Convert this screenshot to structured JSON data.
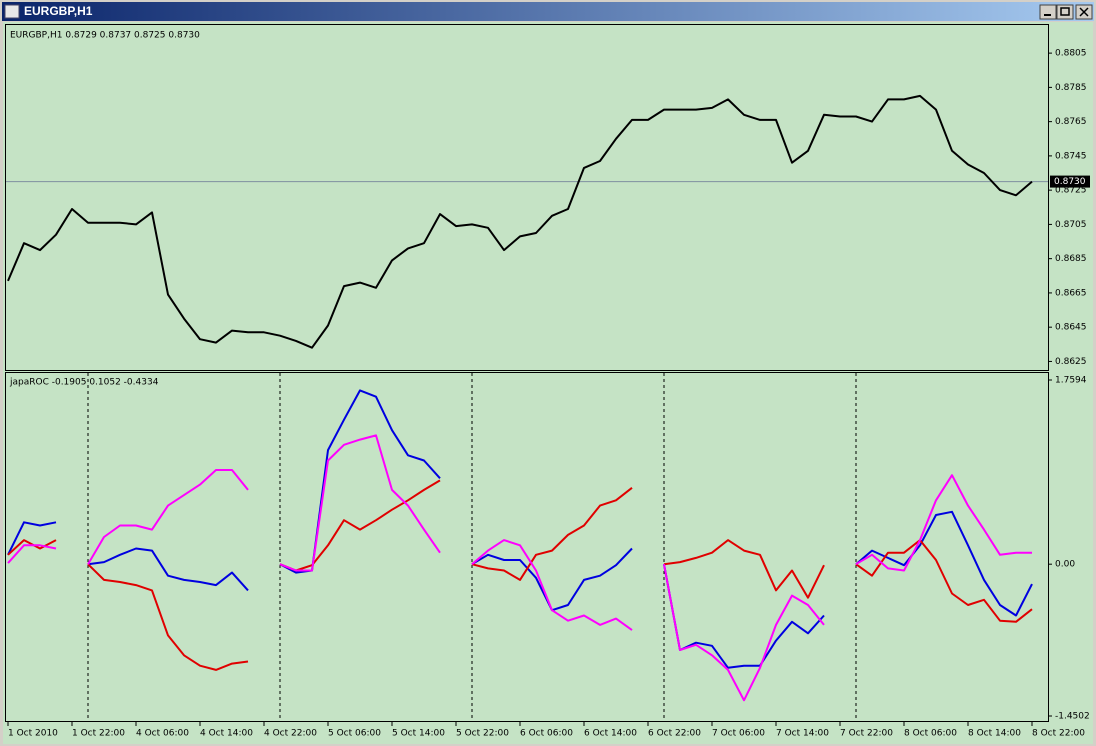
{
  "window_title": "EURGBP,H1",
  "chart_data": [
    {
      "type": "line",
      "title": "EURGBP,H1  0.8729 0.8737 0.8725 0.8730",
      "color": "#000000",
      "values": [
        0.8672,
        0.8694,
        0.869,
        0.8699,
        0.8714,
        0.8706,
        0.8706,
        0.8706,
        0.8705,
        0.8712,
        0.8664,
        0.865,
        0.8638,
        0.8636,
        0.8643,
        0.8642,
        0.8642,
        0.864,
        0.8637,
        0.8633,
        0.8646,
        0.8669,
        0.8671,
        0.8668,
        0.8684,
        0.8691,
        0.8694,
        0.8711,
        0.8704,
        0.8705,
        0.8703,
        0.869,
        0.8698,
        0.87,
        0.871,
        0.8714,
        0.8738,
        0.8742,
        0.8755,
        0.8766,
        0.8766,
        0.8772,
        0.8772,
        0.8772,
        0.8773,
        0.8778,
        0.8769,
        0.8766,
        0.8766,
        0.8741,
        0.8748,
        0.8769,
        0.8768,
        0.8768,
        0.8765,
        0.8778,
        0.8778,
        0.878,
        0.8772,
        0.8748,
        0.874,
        0.8735,
        0.8725,
        0.8722,
        0.873
      ],
      "ylim": [
        0.862,
        0.8822
      ],
      "yticks": [
        0.8805,
        0.8785,
        0.8765,
        0.8745,
        0.8725,
        0.8705,
        0.8685,
        0.8665,
        0.8645,
        0.8625
      ],
      "last_price": {
        "value": 0.873,
        "label": "0.8730"
      }
    },
    {
      "type": "line",
      "title": "japaROC -0.1905 0.1052 -0.4334",
      "categories": [
        "1 Oct 2010",
        null,
        null,
        null,
        "1 Oct 22:00",
        null,
        null,
        null,
        "4 Oct 06:00",
        null,
        null,
        null,
        "4 Oct 14:00",
        null,
        null,
        null,
        "4 Oct 22:00",
        null,
        null,
        null,
        "5 Oct 06:00",
        null,
        null,
        null,
        "5 Oct 14:00",
        null,
        null,
        null,
        "5 Oct 22:00",
        null,
        null,
        null,
        "6 Oct 06:00",
        null,
        null,
        null,
        "6 Oct 14:00",
        null,
        null,
        null,
        "6 Oct 22:00",
        null,
        null,
        null,
        "7 Oct 06:00",
        null,
        null,
        null,
        "7 Oct 14:00",
        null,
        null,
        null,
        "7 Oct 22:00",
        null,
        null,
        null,
        "8 Oct 06:00",
        null,
        null,
        null,
        "8 Oct 14:00",
        null,
        null,
        null,
        "8 Oct 22:00"
      ],
      "series": [
        {
          "color": "#0000e0",
          "values": [
            0.09,
            0.4,
            0.37,
            0.4,
            null,
            0,
            0.02,
            0.09,
            0.15,
            0.13,
            -0.11,
            -0.15,
            -0.17,
            -0.2,
            -0.08,
            -0.25,
            null,
            0,
            -0.08,
            -0.06,
            1.09,
            1.38,
            1.66,
            1.6,
            1.28,
            1.04,
            0.99,
            0.82,
            null,
            0,
            0.09,
            0.04,
            0.04,
            -0.13,
            -0.44,
            -0.39,
            -0.15,
            -0.11,
            -0.01,
            0.15,
            null,
            0,
            -0.82,
            -0.75,
            -0.78,
            -0.99,
            -0.97,
            -0.97,
            -0.73,
            -0.55,
            -0.66,
            -0.49,
            null,
            0,
            0.13,
            0.06,
            -0.01,
            0.18,
            0.47,
            0.5,
            0.18,
            -0.15,
            -0.39,
            -0.49,
            -0.19
          ]
        },
        {
          "color": "#e00000",
          "values": [
            0.09,
            0.23,
            0.15,
            0.23,
            null,
            0,
            -0.15,
            -0.17,
            -0.2,
            -0.25,
            -0.68,
            -0.87,
            -0.97,
            -1.01,
            -0.95,
            -0.93,
            null,
            0,
            -0.06,
            -0.01,
            0.18,
            0.42,
            0.33,
            0.42,
            0.52,
            0.61,
            0.71,
            0.8,
            null,
            0,
            -0.04,
            -0.06,
            -0.15,
            0.09,
            0.13,
            0.28,
            0.37,
            0.56,
            0.61,
            0.73,
            null,
            0,
            0.02,
            0.06,
            0.11,
            0.23,
            0.13,
            0.09,
            -0.25,
            -0.06,
            -0.32,
            -0.01,
            null,
            0,
            -0.11,
            0.11,
            0.11,
            0.23,
            0.04,
            -0.28,
            -0.39,
            -0.34,
            -0.54,
            -0.55,
            -0.43
          ]
        },
        {
          "color": "#ff00ff",
          "values": [
            0.01,
            0.18,
            0.18,
            0.15,
            null,
            0,
            0.26,
            0.37,
            0.37,
            0.33,
            0.56,
            0.66,
            0.76,
            0.9,
            0.9,
            0.71,
            null,
            0,
            -0.06,
            -0.06,
            0.99,
            1.14,
            1.19,
            1.23,
            0.71,
            0.56,
            0.33,
            0.11,
            null,
            0,
            0.13,
            0.23,
            0.18,
            -0.06,
            -0.44,
            -0.54,
            -0.49,
            -0.58,
            -0.52,
            -0.63,
            null,
            0,
            -0.82,
            -0.77,
            -0.87,
            -1.01,
            -1.3,
            -0.99,
            -0.58,
            -0.3,
            -0.39,
            -0.58,
            null,
            0,
            0.09,
            -0.04,
            -0.06,
            0.23,
            0.61,
            0.85,
            0.56,
            0.33,
            0.09,
            0.11,
            0.11
          ]
        }
      ],
      "ylim": [
        -1.4502,
        1.7594
      ],
      "yticks": [
        1.7594,
        {
          "value": 0,
          "label": "0.00"
        },
        -1.4502
      ]
    }
  ]
}
